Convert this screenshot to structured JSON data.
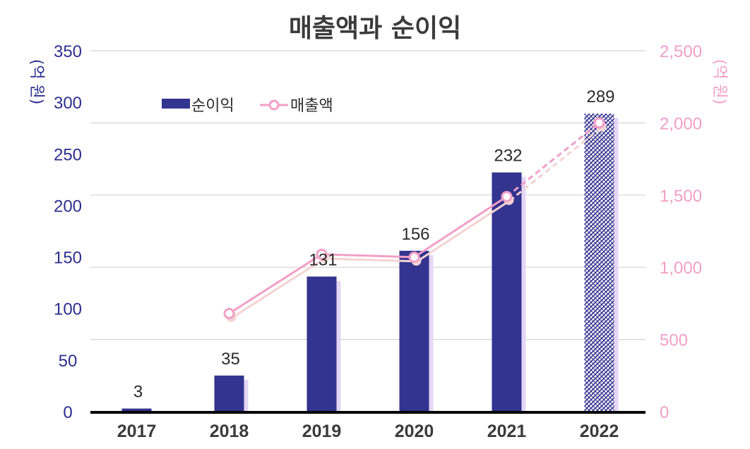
{
  "chart_data": {
    "type": "bar",
    "title": "매출액과 순이익",
    "categories": [
      "2017",
      "2018",
      "2019",
      "2020",
      "2021",
      "2022"
    ],
    "series": [
      {
        "name": "순이익",
        "type": "bar",
        "axis": "left",
        "values": [
          3,
          35,
          131,
          156,
          232,
          289
        ],
        "projected": [
          false,
          false,
          false,
          false,
          false,
          true
        ]
      },
      {
        "name": "매출액",
        "type": "line",
        "axis": "right",
        "values": [
          null,
          680,
          1090,
          1070,
          1490,
          2000
        ],
        "projected_from_index": 4
      }
    ],
    "ylabel_left": "(억 원)",
    "ylabel_right": "(억 원)",
    "ylim_left": [
      0,
      350
    ],
    "ylim_right": [
      0,
      2500
    ],
    "yticks_left": [
      "0",
      "50",
      "100",
      "150",
      "200",
      "250",
      "300",
      "350"
    ],
    "yticks_right": [
      "0",
      "500",
      "1,000",
      "1,500",
      "2,000",
      "2,500"
    ],
    "legend_position": "top-left",
    "grid": true,
    "colors": {
      "bar": "#33348f",
      "bar_shadow": "#e4d6f6",
      "line": "#f29fc6",
      "line_shadow": "#f4d3d3",
      "left_axis": "#2e2f8f",
      "right_axis": "#f29fc6",
      "grid": "#d4d4d4",
      "baseline": "#000000"
    }
  }
}
